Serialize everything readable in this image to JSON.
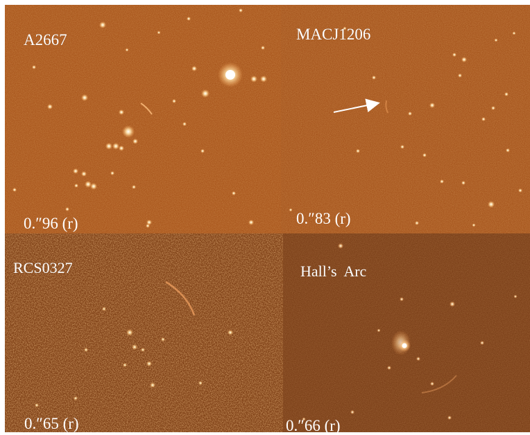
{
  "figure": {
    "panels": [
      {
        "name": "A2667",
        "label": "A2667",
        "seeing": "0.″96 (r)",
        "background_color": "#a9561c"
      },
      {
        "name": "MACJ1206",
        "label": "MACJ1206",
        "seeing": "0.″83 (r)",
        "background_color": "#a6551d"
      },
      {
        "name": "RCS0327",
        "label": "RCS0327",
        "seeing": "0.″65 (r)",
        "background_color": "#8b4718"
      },
      {
        "name": "Hall's Arc",
        "label": "Hall’s  Arc",
        "seeing": "0.″66 (r)",
        "background_color": "#7b3f18"
      }
    ],
    "arrow_color": "#ffffff"
  }
}
